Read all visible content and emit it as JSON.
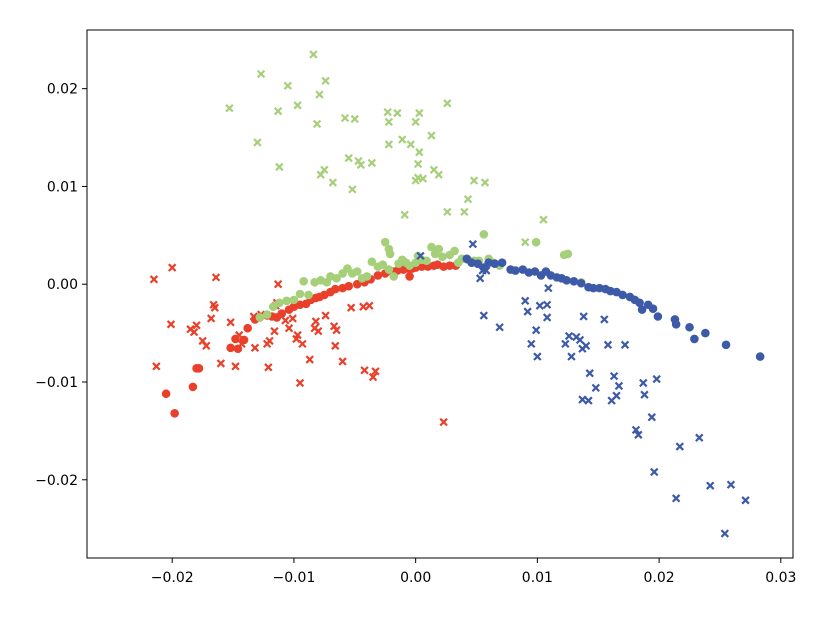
{
  "chart_data": {
    "type": "scatter",
    "xlim": [
      -0.027,
      0.031
    ],
    "ylim": [
      -0.028,
      0.026
    ],
    "x_ticks": [
      -0.02,
      -0.01,
      0.0,
      0.01,
      0.02,
      0.03
    ],
    "x_tick_labels": [
      "−0.02",
      "−0.01",
      "0.00",
      "0.01",
      "0.02",
      "0.03"
    ],
    "y_ticks": [
      -0.02,
      -0.01,
      0.0,
      0.01,
      0.02
    ],
    "y_tick_labels": [
      "−0.02",
      "−0.01",
      "0.00",
      "0.01",
      "0.02"
    ],
    "grid": false,
    "legend": "none",
    "series": [
      {
        "color": "#e8402a",
        "marker": "circle",
        "points": [
          [
            -0.0205,
            -0.0112
          ],
          [
            -0.0198,
            -0.0132
          ],
          [
            -0.0183,
            -0.0105
          ],
          [
            -0.018,
            -0.0086
          ],
          [
            -0.0178,
            -0.0086
          ],
          [
            -0.0152,
            -0.0065
          ],
          [
            -0.0148,
            -0.0056
          ],
          [
            -0.0146,
            -0.0066
          ],
          [
            -0.0141,
            -0.0057
          ],
          [
            -0.0138,
            -0.0045
          ],
          [
            -0.0132,
            -0.0036
          ],
          [
            -0.0128,
            -0.0034
          ],
          [
            -0.0122,
            -0.0032
          ],
          [
            -0.0118,
            -0.0033
          ],
          [
            -0.0114,
            -0.0034
          ],
          [
            -0.011,
            -0.003
          ],
          [
            -0.0104,
            -0.0026
          ],
          [
            -0.01,
            -0.0023
          ],
          [
            -0.0095,
            -0.0021
          ],
          [
            -0.009,
            -0.002
          ],
          [
            -0.0086,
            -0.0016
          ],
          [
            -0.0082,
            -0.0014
          ],
          [
            -0.0079,
            -0.0013
          ],
          [
            -0.0075,
            -0.0011
          ],
          [
            -0.007,
            -0.0008
          ],
          [
            -0.0066,
            -0.0005
          ],
          [
            -0.006,
            -0.0004
          ],
          [
            -0.0055,
            -0.0002
          ],
          [
            -0.0048,
            0.0
          ],
          [
            -0.0042,
            0.0002
          ],
          [
            -0.0037,
            0.0005
          ],
          [
            -0.0031,
            0.0009
          ],
          [
            -0.0025,
            0.0011
          ],
          [
            -0.0019,
            0.0013
          ],
          [
            -0.0015,
            0.0014
          ],
          [
            -0.001,
            0.0015
          ],
          [
            -0.0006,
            0.0016
          ],
          [
            -0.0003,
            0.0016
          ],
          [
            0.0,
            0.0017
          ],
          [
            0.0005,
            0.0018
          ],
          [
            0.001,
            0.0018
          ],
          [
            0.0015,
            0.0019
          ],
          [
            0.0018,
            0.002
          ],
          [
            0.0023,
            0.0018
          ],
          [
            0.0028,
            0.0019
          ],
          [
            0.0033,
            0.0019
          ],
          [
            -0.0005,
            0.0008
          ]
        ]
      },
      {
        "color": "#e8402a",
        "marker": "cross",
        "points": [
          [
            -0.0215,
            0.0005
          ],
          [
            -0.02,
            0.0017
          ],
          [
            -0.0213,
            -0.0084
          ],
          [
            -0.0201,
            -0.0041
          ],
          [
            -0.0185,
            -0.0046
          ],
          [
            -0.0182,
            -0.0049
          ],
          [
            -0.018,
            -0.0042
          ],
          [
            -0.0175,
            -0.0058
          ],
          [
            -0.0172,
            -0.0063
          ],
          [
            -0.0168,
            -0.0035
          ],
          [
            -0.0165,
            -0.0024
          ],
          [
            -0.0166,
            -0.0021
          ],
          [
            -0.0164,
            0.0007
          ],
          [
            -0.016,
            -0.0081
          ],
          [
            -0.0148,
            -0.0084
          ],
          [
            -0.0152,
            -0.0039
          ],
          [
            -0.0145,
            -0.0052
          ],
          [
            -0.0143,
            -0.0061
          ],
          [
            -0.0133,
            -0.0033
          ],
          [
            -0.0132,
            -0.0065
          ],
          [
            -0.0127,
            -0.0031
          ],
          [
            -0.0122,
            -0.0061
          ],
          [
            -0.0121,
            -0.0085
          ],
          [
            -0.012,
            -0.0058
          ],
          [
            -0.0116,
            -0.0048
          ],
          [
            -0.0114,
            -0.0019
          ],
          [
            -0.0113,
            0.0
          ],
          [
            -0.0115,
            -0.0022
          ],
          [
            -0.0107,
            -0.0037
          ],
          [
            -0.0104,
            -0.0045
          ],
          [
            -0.0101,
            -0.0035
          ],
          [
            -0.0098,
            -0.0056
          ],
          [
            -0.0097,
            -0.0052
          ],
          [
            -0.0095,
            -0.0101
          ],
          [
            -0.0093,
            -0.0061
          ],
          [
            -0.0087,
            -0.0077
          ],
          [
            -0.0083,
            -0.0045
          ],
          [
            -0.0082,
            -0.0038
          ],
          [
            -0.008,
            -0.0048
          ],
          [
            -0.0074,
            -0.0032
          ],
          [
            -0.0067,
            -0.0043
          ],
          [
            -0.0065,
            -0.0047
          ],
          [
            -0.0066,
            -0.0063
          ],
          [
            -0.006,
            -0.0079
          ],
          [
            -0.0053,
            -0.0024
          ],
          [
            -0.0043,
            -0.0023
          ],
          [
            -0.0042,
            -0.0088
          ],
          [
            -0.0035,
            -0.0095
          ],
          [
            -0.0033,
            -0.0089
          ],
          [
            -0.0038,
            -0.0022
          ],
          [
            0.0023,
            -0.0141
          ]
        ]
      },
      {
        "color": "#a6cf7a",
        "marker": "circle",
        "points": [
          [
            -0.0128,
            -0.0034
          ],
          [
            -0.0122,
            -0.0031
          ],
          [
            -0.0117,
            -0.0023
          ],
          [
            -0.0112,
            -0.0019
          ],
          [
            -0.0106,
            -0.0017
          ],
          [
            -0.01,
            -0.0016
          ],
          [
            -0.0095,
            -0.001
          ],
          [
            -0.0092,
            0.0003
          ],
          [
            -0.0088,
            -0.0011
          ],
          [
            -0.0083,
            0.0002
          ],
          [
            -0.0078,
            0.0004
          ],
          [
            -0.0073,
            0.0002
          ],
          [
            -0.007,
            0.0008
          ],
          [
            -0.0065,
            0.0006
          ],
          [
            -0.006,
            0.0011
          ],
          [
            -0.0056,
            0.0016
          ],
          [
            -0.0052,
            0.0011
          ],
          [
            -0.0048,
            0.0013
          ],
          [
            -0.0044,
            0.0006
          ],
          [
            -0.004,
            0.0008
          ],
          [
            -0.0036,
            0.0023
          ],
          [
            -0.0031,
            0.0018
          ],
          [
            -0.0027,
            0.002
          ],
          [
            -0.0022,
            0.0015
          ],
          [
            -0.0018,
            0.0008
          ],
          [
            -0.0014,
            0.0021
          ],
          [
            -0.0011,
            0.0025
          ],
          [
            -0.0008,
            0.0022
          ],
          [
            -0.0005,
            0.0019
          ],
          [
            0.0,
            0.0022
          ],
          [
            0.0002,
            0.0029
          ],
          [
            0.0005,
            0.0025
          ],
          [
            0.0009,
            0.0024
          ],
          [
            0.0013,
            0.0038
          ],
          [
            0.0016,
            0.0031
          ],
          [
            0.0019,
            0.0036
          ],
          [
            0.0022,
            0.0028
          ],
          [
            0.0028,
            0.003
          ],
          [
            0.0032,
            0.0034
          ],
          [
            0.0035,
            0.0022
          ],
          [
            0.0038,
            0.0026
          ],
          [
            0.0043,
            0.0025
          ],
          [
            0.0048,
            0.0024
          ],
          [
            0.0052,
            0.0024
          ],
          [
            0.0056,
            0.0051
          ],
          [
            0.006,
            0.0026
          ],
          [
            0.0064,
            0.0022
          ],
          [
            0.0069,
            0.0019
          ],
          [
            -0.0025,
            0.0043
          ],
          [
            -0.0022,
            0.0036
          ],
          [
            -0.0021,
            0.0031
          ],
          [
            0.0099,
            0.0043
          ],
          [
            0.0122,
            0.003
          ],
          [
            0.0125,
            0.0031
          ],
          [
            0.0136,
            0.0002
          ]
        ]
      },
      {
        "color": "#a6cf7a",
        "marker": "cross",
        "points": [
          [
            -0.0153,
            0.018
          ],
          [
            -0.0127,
            0.0215
          ],
          [
            -0.013,
            0.0145
          ],
          [
            -0.0113,
            0.0177
          ],
          [
            -0.0112,
            0.012
          ],
          [
            -0.0105,
            0.0203
          ],
          [
            -0.0097,
            0.0183
          ],
          [
            -0.0084,
            0.0235
          ],
          [
            -0.0079,
            0.0194
          ],
          [
            -0.0081,
            0.0164
          ],
          [
            -0.0074,
            0.0208
          ],
          [
            -0.0078,
            0.0112
          ],
          [
            -0.0075,
            0.0117
          ],
          [
            -0.0068,
            0.0104
          ],
          [
            -0.0058,
            0.017
          ],
          [
            -0.005,
            0.0169
          ],
          [
            -0.0055,
            0.0129
          ],
          [
            -0.0047,
            0.0126
          ],
          [
            -0.0052,
            0.0097
          ],
          [
            -0.0045,
            0.0122
          ],
          [
            -0.0036,
            0.0124
          ],
          [
            -0.0023,
            0.0176
          ],
          [
            -0.0022,
            0.0166
          ],
          [
            -0.0015,
            0.0175
          ],
          [
            -0.0022,
            0.0143
          ],
          [
            -0.0011,
            0.0148
          ],
          [
            -0.0009,
            0.0071
          ],
          [
            -0.0004,
            0.0143
          ],
          [
            0.0003,
            0.0175
          ],
          [
            0.0,
            0.0166
          ],
          [
            0.0003,
            0.0135
          ],
          [
            0.0002,
            0.0109
          ],
          [
            0.0,
            0.0106
          ],
          [
            0.0006,
            0.0108
          ],
          [
            0.0002,
            0.0123
          ],
          [
            0.0013,
            0.0152
          ],
          [
            0.0015,
            0.0117
          ],
          [
            0.0019,
            0.0112
          ],
          [
            0.0026,
            0.0185
          ],
          [
            0.0026,
            0.0074
          ],
          [
            0.0043,
            0.0087
          ],
          [
            0.0048,
            0.0106
          ],
          [
            0.0057,
            0.0104
          ],
          [
            0.004,
            0.0074
          ],
          [
            0.009,
            0.0043
          ],
          [
            0.0105,
            0.0066
          ]
        ]
      },
      {
        "color": "#3c5aa8",
        "marker": "circle",
        "points": [
          [
            0.0042,
            0.0026
          ],
          [
            0.0046,
            0.0022
          ],
          [
            0.0051,
            0.0021
          ],
          [
            0.0056,
            0.0017
          ],
          [
            0.006,
            0.0022
          ],
          [
            0.0065,
            0.0021
          ],
          [
            0.0071,
            0.0022
          ],
          [
            0.0078,
            0.0015
          ],
          [
            0.0082,
            0.0014
          ],
          [
            0.0088,
            0.0015
          ],
          [
            0.0093,
            0.0012
          ],
          [
            0.0098,
            0.0013
          ],
          [
            0.0103,
            0.0009
          ],
          [
            0.0107,
            0.0013
          ],
          [
            0.0111,
            0.0009
          ],
          [
            0.0116,
            0.0007
          ],
          [
            0.012,
            0.0006
          ],
          [
            0.0124,
            0.0004
          ],
          [
            0.013,
            0.0003
          ],
          [
            0.0136,
            0.0001
          ],
          [
            0.0142,
            -0.0003
          ],
          [
            0.0146,
            -0.0004
          ],
          [
            0.0151,
            -0.0004
          ],
          [
            0.0156,
            -0.0005
          ],
          [
            0.016,
            -0.0007
          ],
          [
            0.0165,
            -0.0008
          ],
          [
            0.017,
            -0.0011
          ],
          [
            0.0176,
            -0.0013
          ],
          [
            0.018,
            -0.0016
          ],
          [
            0.0184,
            -0.0019
          ],
          [
            0.0186,
            -0.0026
          ],
          [
            0.0191,
            -0.0021
          ],
          [
            0.0195,
            -0.0025
          ],
          [
            0.0199,
            -0.0033
          ],
          [
            0.0213,
            -0.0036
          ],
          [
            0.0214,
            -0.0041
          ],
          [
            0.0225,
            -0.0044
          ],
          [
            0.0229,
            -0.0056
          ],
          [
            0.0238,
            -0.005
          ],
          [
            0.0255,
            -0.0062
          ],
          [
            0.0283,
            -0.0074
          ]
        ]
      },
      {
        "color": "#3c5aa8",
        "marker": "cross",
        "points": [
          [
            0.0004,
            0.0029
          ],
          [
            0.0047,
            0.0041
          ],
          [
            0.0055,
            0.0014
          ],
          [
            0.0053,
            0.0006
          ],
          [
            0.0056,
            -0.0032
          ],
          [
            0.0058,
            0.0014
          ],
          [
            0.0069,
            -0.0044
          ],
          [
            0.009,
            -0.0017
          ],
          [
            0.0092,
            -0.0028
          ],
          [
            0.0095,
            -0.0061
          ],
          [
            0.0099,
            -0.0047
          ],
          [
            0.01,
            -0.0074
          ],
          [
            0.0102,
            -0.0022
          ],
          [
            0.0108,
            -0.0021
          ],
          [
            0.0109,
            -0.0004
          ],
          [
            0.0108,
            -0.0034
          ],
          [
            0.0123,
            -0.0061
          ],
          [
            0.0126,
            -0.0053
          ],
          [
            0.0128,
            -0.0074
          ],
          [
            0.0132,
            -0.0054
          ],
          [
            0.0135,
            -0.0057
          ],
          [
            0.0137,
            -0.0066
          ],
          [
            0.0138,
            -0.0033
          ],
          [
            0.0137,
            -0.0118
          ],
          [
            0.0142,
            -0.0119
          ],
          [
            0.014,
            -0.0063
          ],
          [
            0.0143,
            -0.0091
          ],
          [
            0.0148,
            -0.0106
          ],
          [
            0.0158,
            -0.0062
          ],
          [
            0.0155,
            -0.0036
          ],
          [
            0.0161,
            -0.0119
          ],
          [
            0.0163,
            -0.0094
          ],
          [
            0.0167,
            -0.0104
          ],
          [
            0.0165,
            -0.0114
          ],
          [
            0.0172,
            -0.0062
          ],
          [
            0.0181,
            -0.0149
          ],
          [
            0.0183,
            -0.0154
          ],
          [
            0.0187,
            -0.0101
          ],
          [
            0.0188,
            -0.0113
          ],
          [
            0.0194,
            -0.0136
          ],
          [
            0.0196,
            -0.0192
          ],
          [
            0.0198,
            -0.0097
          ],
          [
            0.0214,
            -0.0219
          ],
          [
            0.0217,
            -0.0166
          ],
          [
            0.0233,
            -0.0157
          ],
          [
            0.0242,
            -0.0206
          ],
          [
            0.0259,
            -0.0205
          ],
          [
            0.0271,
            -0.0221
          ],
          [
            0.0254,
            -0.0255
          ]
        ]
      }
    ]
  }
}
